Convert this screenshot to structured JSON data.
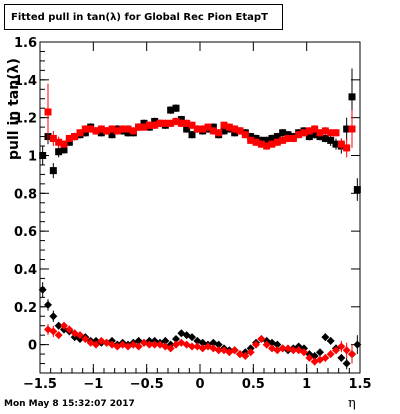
{
  "title": "Fitted pull in tan(λ) for Global Rec Pion EtapT",
  "footer": "Mon May  8 15:32:07 2017",
  "chart_data": {
    "type": "scatter",
    "title": "Fitted pull in tan(λ) for Global Rec Pion EtapT",
    "xlabel": "η",
    "ylabel": "pull in tan(λ)",
    "xlim": [
      -1.5,
      1.5
    ],
    "ylim": [
      -0.15,
      1.6
    ],
    "xticks": [
      -1.5,
      -1,
      -0.5,
      0,
      0.5,
      1,
      1.5
    ],
    "xtick_labels": [
      "−1.5",
      "−1",
      "−0.5",
      "0",
      "0.5",
      "1",
      "1.5"
    ],
    "yticks": [
      0,
      0.2,
      0.4,
      0.6,
      0.8,
      1,
      1.2,
      1.4,
      1.6
    ],
    "ytick_labels": [
      "0",
      "0.2",
      "0.4",
      "0.6",
      "0.8",
      "1",
      "1.2",
      "1.4",
      "1.6"
    ],
    "grid": false,
    "series": [
      {
        "kind": "mean",
        "color": "#000000",
        "marker": "square",
        "x": [
          -1.475,
          -1.425,
          -1.375,
          -1.325,
          -1.275,
          -1.225,
          -1.175,
          -1.125,
          -1.075,
          -1.025,
          -0.975,
          -0.925,
          -0.875,
          -0.825,
          -0.775,
          -0.725,
          -0.675,
          -0.625,
          -0.575,
          -0.525,
          -0.475,
          -0.425,
          -0.375,
          -0.325,
          -0.275,
          -0.225,
          -0.175,
          -0.125,
          -0.075,
          -0.025,
          0.025,
          0.075,
          0.125,
          0.175,
          0.225,
          0.275,
          0.325,
          0.375,
          0.425,
          0.475,
          0.525,
          0.575,
          0.625,
          0.675,
          0.725,
          0.775,
          0.825,
          0.875,
          0.925,
          0.975,
          1.025,
          1.075,
          1.125,
          1.175,
          1.225,
          1.275,
          1.325,
          1.375,
          1.425,
          1.475
        ],
        "y": [
          1.0,
          1.1,
          0.92,
          1.02,
          1.03,
          1.07,
          1.1,
          1.11,
          1.12,
          1.15,
          1.13,
          1.12,
          1.13,
          1.11,
          1.14,
          1.13,
          1.12,
          1.12,
          1.15,
          1.17,
          1.15,
          1.18,
          1.17,
          1.16,
          1.24,
          1.25,
          1.19,
          1.14,
          1.11,
          1.14,
          1.13,
          1.14,
          1.15,
          1.11,
          1.13,
          1.14,
          1.12,
          1.13,
          1.12,
          1.1,
          1.09,
          1.08,
          1.08,
          1.09,
          1.1,
          1.12,
          1.11,
          1.1,
          1.12,
          1.13,
          1.1,
          1.11,
          1.1,
          1.09,
          1.08,
          1.06,
          1.05,
          1.14,
          1.31,
          0.82
        ],
        "err": [
          0.05,
          0.04,
          0.04,
          0.03,
          0.02,
          0.02,
          0.02,
          0.02,
          0.02,
          0.02,
          0.02,
          0.02,
          0.02,
          0.02,
          0.02,
          0.02,
          0.02,
          0.02,
          0.02,
          0.02,
          0.02,
          0.02,
          0.02,
          0.02,
          0.02,
          0.02,
          0.02,
          0.02,
          0.02,
          0.02,
          0.02,
          0.02,
          0.02,
          0.02,
          0.02,
          0.02,
          0.02,
          0.02,
          0.02,
          0.02,
          0.02,
          0.02,
          0.02,
          0.02,
          0.02,
          0.02,
          0.02,
          0.02,
          0.02,
          0.02,
          0.02,
          0.02,
          0.02,
          0.02,
          0.03,
          0.03,
          0.04,
          0.06,
          0.15,
          0.06
        ]
      },
      {
        "kind": "mean",
        "color": "#ff0000",
        "marker": "square",
        "x": [
          -1.425,
          -1.375,
          -1.325,
          -1.275,
          -1.225,
          -1.175,
          -1.125,
          -1.075,
          -1.025,
          -0.975,
          -0.925,
          -0.875,
          -0.825,
          -0.775,
          -0.725,
          -0.675,
          -0.625,
          -0.575,
          -0.525,
          -0.475,
          -0.425,
          -0.375,
          -0.325,
          -0.275,
          -0.225,
          -0.175,
          -0.125,
          -0.075,
          -0.025,
          0.025,
          0.075,
          0.125,
          0.175,
          0.225,
          0.275,
          0.325,
          0.375,
          0.425,
          0.475,
          0.525,
          0.575,
          0.625,
          0.675,
          0.725,
          0.775,
          0.825,
          0.875,
          0.925,
          0.975,
          1.025,
          1.075,
          1.125,
          1.175,
          1.225,
          1.275,
          1.325,
          1.375,
          1.425
        ],
        "y": [
          1.23,
          1.09,
          1.07,
          1.06,
          1.09,
          1.1,
          1.12,
          1.14,
          1.14,
          1.13,
          1.14,
          1.13,
          1.14,
          1.13,
          1.14,
          1.14,
          1.13,
          1.15,
          1.15,
          1.16,
          1.16,
          1.17,
          1.17,
          1.17,
          1.18,
          1.17,
          1.17,
          1.16,
          1.14,
          1.14,
          1.15,
          1.13,
          1.12,
          1.16,
          1.15,
          1.14,
          1.13,
          1.11,
          1.08,
          1.07,
          1.06,
          1.05,
          1.06,
          1.07,
          1.08,
          1.09,
          1.09,
          1.11,
          1.12,
          1.13,
          1.14,
          1.12,
          1.13,
          1.12,
          1.12,
          1.06,
          1.04,
          1.14
        ],
        "err": [
          0.15,
          0.04,
          0.03,
          0.02,
          0.02,
          0.02,
          0.02,
          0.02,
          0.02,
          0.02,
          0.02,
          0.02,
          0.02,
          0.02,
          0.02,
          0.02,
          0.02,
          0.02,
          0.02,
          0.02,
          0.02,
          0.02,
          0.02,
          0.02,
          0.02,
          0.02,
          0.02,
          0.02,
          0.02,
          0.02,
          0.02,
          0.02,
          0.02,
          0.02,
          0.02,
          0.02,
          0.02,
          0.02,
          0.02,
          0.02,
          0.02,
          0.02,
          0.02,
          0.02,
          0.02,
          0.02,
          0.02,
          0.02,
          0.02,
          0.02,
          0.02,
          0.02,
          0.02,
          0.02,
          0.02,
          0.03,
          0.05,
          0.1
        ]
      },
      {
        "kind": "offset",
        "color": "#000000",
        "marker": "diamond",
        "x": [
          -1.475,
          -1.425,
          -1.375,
          -1.325,
          -1.275,
          -1.225,
          -1.175,
          -1.125,
          -1.075,
          -1.025,
          -0.975,
          -0.925,
          -0.875,
          -0.825,
          -0.775,
          -0.725,
          -0.675,
          -0.625,
          -0.575,
          -0.525,
          -0.475,
          -0.425,
          -0.375,
          -0.325,
          -0.275,
          -0.225,
          -0.175,
          -0.125,
          -0.075,
          -0.025,
          0.025,
          0.075,
          0.125,
          0.175,
          0.225,
          0.275,
          0.325,
          0.375,
          0.425,
          0.475,
          0.525,
          0.575,
          0.625,
          0.675,
          0.725,
          0.775,
          0.825,
          0.875,
          0.925,
          0.975,
          1.025,
          1.075,
          1.125,
          1.175,
          1.225,
          1.275,
          1.325,
          1.375,
          1.425,
          1.475
        ],
        "y": [
          0.29,
          0.21,
          0.15,
          0.1,
          0.08,
          0.07,
          0.04,
          0.03,
          0.04,
          0.02,
          0.02,
          0.01,
          0.01,
          0.02,
          0.0,
          0.01,
          0.0,
          0.01,
          0.02,
          0.01,
          0.02,
          0.02,
          0.01,
          0.02,
          0.0,
          0.03,
          0.06,
          0.05,
          0.04,
          0.02,
          0.01,
          0.0,
          0.01,
          0.0,
          -0.02,
          -0.03,
          -0.03,
          -0.05,
          -0.04,
          -0.02,
          0.01,
          0.03,
          0.02,
          0.01,
          0.0,
          -0.02,
          -0.03,
          -0.02,
          -0.01,
          -0.02,
          -0.05,
          -0.06,
          -0.04,
          0.04,
          0.02,
          -0.02,
          -0.07,
          -0.1,
          -0.05,
          0.0
        ],
        "err": [
          0.04,
          0.03,
          0.03,
          0.02,
          0.02,
          0.02,
          0.02,
          0.01,
          0.01,
          0.01,
          0.01,
          0.01,
          0.01,
          0.01,
          0.01,
          0.01,
          0.01,
          0.01,
          0.01,
          0.01,
          0.01,
          0.01,
          0.01,
          0.01,
          0.01,
          0.01,
          0.01,
          0.01,
          0.01,
          0.01,
          0.01,
          0.01,
          0.01,
          0.01,
          0.01,
          0.01,
          0.01,
          0.01,
          0.01,
          0.01,
          0.01,
          0.01,
          0.01,
          0.01,
          0.01,
          0.01,
          0.01,
          0.01,
          0.01,
          0.01,
          0.01,
          0.01,
          0.01,
          0.02,
          0.02,
          0.02,
          0.02,
          0.03,
          0.04,
          0.05
        ]
      },
      {
        "kind": "offset",
        "color": "#ff0000",
        "marker": "diamond",
        "x": [
          -1.425,
          -1.375,
          -1.325,
          -1.275,
          -1.225,
          -1.175,
          -1.125,
          -1.075,
          -1.025,
          -0.975,
          -0.925,
          -0.875,
          -0.825,
          -0.775,
          -0.725,
          -0.675,
          -0.625,
          -0.575,
          -0.525,
          -0.475,
          -0.425,
          -0.375,
          -0.325,
          -0.275,
          -0.225,
          -0.175,
          -0.125,
          -0.075,
          -0.025,
          0.025,
          0.075,
          0.125,
          0.175,
          0.225,
          0.275,
          0.325,
          0.375,
          0.425,
          0.475,
          0.525,
          0.575,
          0.625,
          0.675,
          0.725,
          0.775,
          0.825,
          0.875,
          0.925,
          0.975,
          1.025,
          1.075,
          1.125,
          1.175,
          1.225,
          1.275,
          1.325,
          1.375,
          1.425
        ],
        "y": [
          0.08,
          0.07,
          0.05,
          0.1,
          0.08,
          0.06,
          0.05,
          0.03,
          0.01,
          0.0,
          0.02,
          0.01,
          0.0,
          -0.01,
          0.0,
          -0.01,
          0.0,
          -0.01,
          0.01,
          0.0,
          0.0,
          0.0,
          -0.01,
          -0.02,
          0.0,
          0.01,
          0.0,
          -0.01,
          -0.01,
          -0.02,
          -0.01,
          -0.02,
          -0.03,
          -0.03,
          -0.04,
          -0.03,
          -0.05,
          -0.06,
          -0.04,
          0.0,
          0.03,
          0.0,
          -0.02,
          -0.03,
          -0.02,
          -0.02,
          -0.03,
          -0.03,
          -0.04,
          -0.07,
          -0.09,
          -0.08,
          -0.07,
          -0.05,
          -0.03,
          -0.01,
          -0.03,
          -0.05
        ],
        "err": [
          0.03,
          0.03,
          0.02,
          0.02,
          0.02,
          0.02,
          0.01,
          0.01,
          0.01,
          0.01,
          0.01,
          0.01,
          0.01,
          0.01,
          0.01,
          0.01,
          0.01,
          0.01,
          0.01,
          0.01,
          0.01,
          0.01,
          0.01,
          0.01,
          0.01,
          0.01,
          0.01,
          0.01,
          0.01,
          0.01,
          0.01,
          0.01,
          0.01,
          0.01,
          0.01,
          0.01,
          0.01,
          0.01,
          0.01,
          0.01,
          0.01,
          0.01,
          0.01,
          0.01,
          0.01,
          0.01,
          0.01,
          0.01,
          0.01,
          0.01,
          0.02,
          0.02,
          0.02,
          0.02,
          0.02,
          0.03,
          0.04,
          0.05
        ]
      }
    ]
  }
}
